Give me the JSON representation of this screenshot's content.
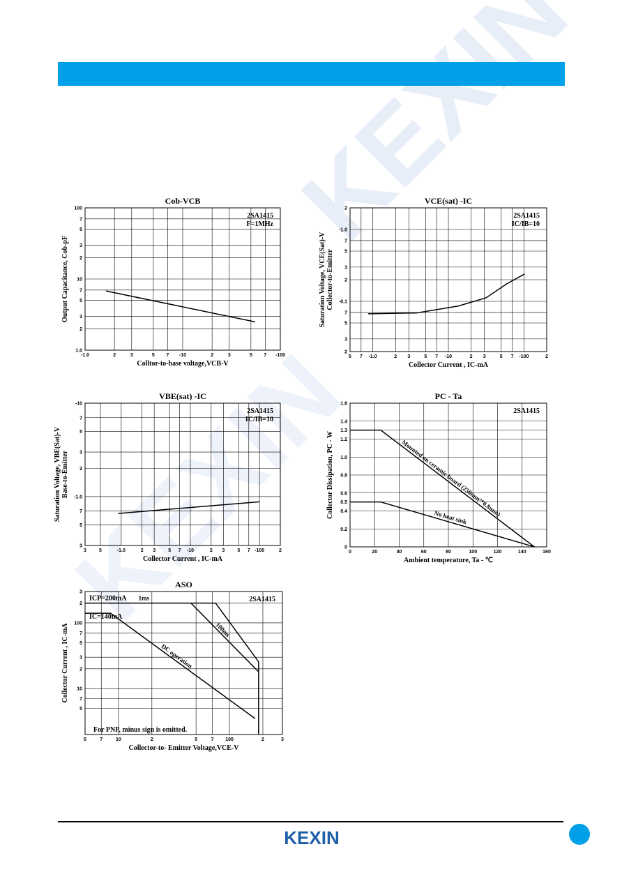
{
  "watermark": "KEXIN",
  "footer": {
    "logo": "KEXIN"
  },
  "chart_data": [
    {
      "type": "line",
      "title": "Cob-VCB",
      "xlabel": "Colltor-to-base voltage,VCB-V",
      "ylabel": [
        "Output Capacitance, Cob-pF"
      ],
      "annotations": [
        "2SA1415",
        "F=1MHz"
      ],
      "xlog": true,
      "ylog": true,
      "grid": true,
      "xlim": [
        1,
        100
      ],
      "ylim": [
        1,
        100
      ],
      "xticks": [
        {
          "value": 1,
          "label": "-1.0"
        },
        2,
        3,
        5,
        7,
        {
          "value": 10,
          "label": "-10"
        },
        {
          "value": 20,
          "label": "2"
        },
        {
          "value": 30,
          "label": "3"
        },
        {
          "value": 50,
          "label": "5"
        },
        {
          "value": 70,
          "label": "7"
        },
        {
          "value": 100,
          "label": "-100"
        }
      ],
      "yticks": [
        {
          "value": 1,
          "label": "1.0"
        },
        2,
        3,
        5,
        7,
        10,
        {
          "value": 20,
          "label": "2"
        },
        {
          "value": 30,
          "label": "3"
        },
        {
          "value": 50,
          "label": "5"
        },
        {
          "value": 70,
          "label": "7"
        },
        100
      ],
      "series": [
        {
          "color": "#000000",
          "x": [
            1.64,
            55
          ],
          "values": [
            6.8,
            2.5
          ]
        }
      ]
    },
    {
      "type": "line",
      "title": "VCE(sat) -IC",
      "xlabel": "Collector Current , IC-mA",
      "ylabel": [
        "Collector-to-Emitter",
        "Saturation Voltage, VCE(Sat)-V"
      ],
      "annotations": [
        "2SA1415",
        "IC/IB=10"
      ],
      "xlog": true,
      "ylog": true,
      "grid": true,
      "xlim": [
        0.5,
        200
      ],
      "ylim": [
        0.02,
        2
      ],
      "xticks": [
        {
          "value": 0.5,
          "label": "5"
        },
        {
          "value": 0.7,
          "label": "7"
        },
        {
          "value": 1,
          "label": "-1.0"
        },
        2,
        3,
        5,
        7,
        {
          "value": 10,
          "label": "-10"
        },
        {
          "value": 20,
          "label": "2"
        },
        {
          "value": 30,
          "label": "3"
        },
        {
          "value": 50,
          "label": "5"
        },
        {
          "value": 70,
          "label": "7"
        },
        {
          "value": 100,
          "label": "-100"
        },
        {
          "value": 200,
          "label": "2"
        }
      ],
      "yticks": [
        {
          "value": 0.02,
          "label": "2"
        },
        {
          "value": 0.03,
          "label": "3"
        },
        {
          "value": 0.05,
          "label": "5"
        },
        {
          "value": 0.07,
          "label": "7"
        },
        {
          "value": 0.1,
          "label": "-0.1"
        },
        {
          "value": 0.2,
          "label": "2"
        },
        {
          "value": 0.3,
          "label": "3"
        },
        {
          "value": 0.5,
          "label": "5"
        },
        {
          "value": 0.7,
          "label": "7"
        },
        {
          "value": 1,
          "label": "-1.0"
        },
        2
      ],
      "series": [
        {
          "color": "#000000",
          "x": [
            0.87,
            3.8,
            13.5,
            31.5,
            59,
            102
          ],
          "values": [
            0.067,
            0.069,
            0.086,
            0.112,
            0.175,
            0.24
          ]
        }
      ]
    },
    {
      "type": "line",
      "title": "VBE(sat) -IC",
      "xlabel": "Collector Current , IC-mA",
      "ylabel": [
        "Base-to-Emitter",
        "Saturation Voltage, VBE(Sat)-V"
      ],
      "annotations": [
        "2SA1415",
        "IC/IB=10"
      ],
      "xlog": true,
      "ylog": true,
      "grid": true,
      "xlim": [
        0.3,
        200
      ],
      "ylim": [
        0.3,
        10
      ],
      "xticks": [
        {
          "value": 0.3,
          "label": "3"
        },
        {
          "value": 0.5,
          "label": "5"
        },
        {
          "value": 1,
          "label": "-1.0"
        },
        2,
        3,
        5,
        7,
        {
          "value": 10,
          "label": "-10"
        },
        {
          "value": 20,
          "label": "2"
        },
        {
          "value": 30,
          "label": "3"
        },
        {
          "value": 50,
          "label": "5"
        },
        {
          "value": 70,
          "label": "7"
        },
        {
          "value": 100,
          "label": "-100"
        },
        {
          "value": 200,
          "label": "2"
        }
      ],
      "yticks": [
        {
          "value": 0.3,
          "label": "3"
        },
        {
          "value": 0.5,
          "label": "5"
        },
        {
          "value": 0.7,
          "label": "7"
        },
        {
          "value": 1,
          "label": "-1.0"
        },
        2,
        3,
        5,
        7,
        {
          "value": 10,
          "label": "-10"
        }
      ],
      "series": [
        {
          "color": "#000000",
          "x": [
            0.9,
            100
          ],
          "values": [
            0.66,
            0.88
          ]
        }
      ]
    },
    {
      "type": "line",
      "title": "PC - Ta",
      "xlabel": "Ambient temperature,  Ta  - ℃",
      "ylabel": [
        "Collector Dissipation,  PC  -  W"
      ],
      "annotations": [
        "2SA1415"
      ],
      "xlog": false,
      "ylog": false,
      "grid": true,
      "xlim": [
        0,
        160
      ],
      "ylim": [
        0,
        1.6
      ],
      "xticks": [
        0,
        20,
        40,
        60,
        80,
        100,
        120,
        140,
        160
      ],
      "yticks": [
        0,
        0.2,
        0.4,
        0.5,
        0.6,
        0.8,
        {
          "value": 1,
          "label": "1.0"
        },
        1.2,
        1.3,
        1.4,
        1.6
      ],
      "series": [
        {
          "name": "Mounted on ceramic board (250mm²*0.8mm)",
          "color": "#000000",
          "x": [
            0,
            25,
            150
          ],
          "values": [
            1.3,
            1.3,
            0
          ]
        },
        {
          "name": "No heat sink",
          "color": "#000000",
          "x": [
            0,
            25,
            150
          ],
          "values": [
            0.5,
            0.5,
            0
          ]
        }
      ]
    },
    {
      "type": "line",
      "title": "ASO",
      "xlabel": "Collector-to- Emitter Voltage,VCE-V",
      "ylabel": [
        "Collector Current , IC-mA"
      ],
      "annotations": [
        "2SA1415"
      ],
      "notes": [
        "ICP=200mA",
        "IC=140mA",
        "For PNP, minus sign is omitted."
      ],
      "xlog": true,
      "ylog": true,
      "grid": true,
      "xlim": [
        5,
        300
      ],
      "ylim": [
        2,
        300
      ],
      "xticks": [
        5,
        7,
        10,
        {
          "value": 20,
          "label": "2"
        },
        {
          "value": 50,
          "label": "5"
        },
        {
          "value": 70,
          "label": "7"
        },
        100,
        {
          "value": 200,
          "label": "2"
        },
        {
          "value": 300,
          "label": "3"
        }
      ],
      "yticks": [
        {
          "value": 5,
          "label": "5"
        },
        {
          "value": 7,
          "label": "7"
        },
        10,
        {
          "value": 20,
          "label": "2"
        },
        {
          "value": 30,
          "label": "3"
        },
        {
          "value": 50,
          "label": "5"
        },
        {
          "value": 70,
          "label": "7"
        },
        100,
        {
          "value": 200,
          "label": "2"
        },
        {
          "value": 300,
          "label": "3"
        }
      ],
      "series": [
        {
          "name": "1ms",
          "color": "#000000",
          "x": [
            5,
            75,
            183,
            183
          ],
          "values": [
            200,
            200,
            25.6,
            2
          ]
        },
        {
          "name": "100ms",
          "color": "#000000",
          "x": [
            45,
            183
          ],
          "values": [
            200,
            18
          ]
        },
        {
          "name": "DC operation",
          "color": "#000000",
          "x": [
            5,
            8.5,
            170
          ],
          "values": [
            140,
            140,
            3.5
          ]
        }
      ]
    }
  ]
}
